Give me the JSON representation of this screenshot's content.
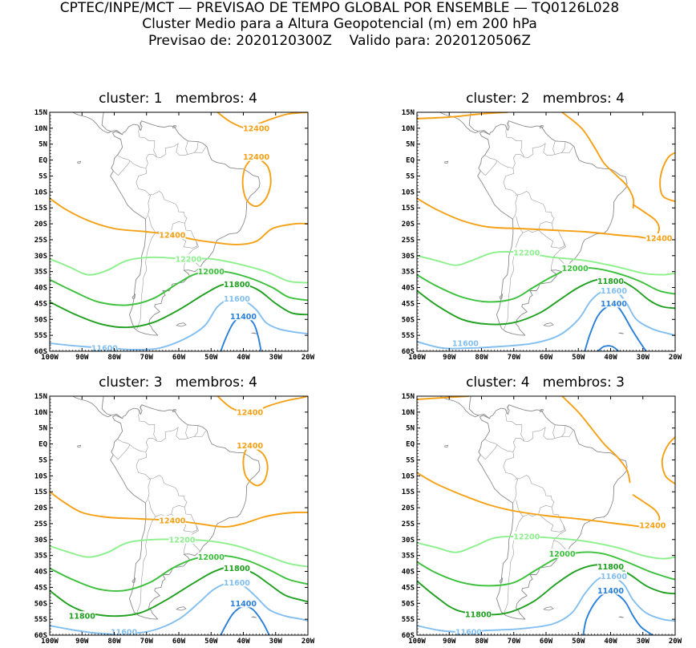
{
  "header": {
    "line1": "CPTEC/INPE/MCT — PREVISAO DE TEMPO GLOBAL POR ENSEMBLE — TQ0126L028",
    "line2": "Cluster Medio para a Altura Geopotencial (m) em 200 hPa",
    "line3": "Previsao de: 2020120300Z    Valido para: 2020120506Z"
  },
  "axes": {
    "lat_labels": [
      "15N",
      "10N",
      "5N",
      "EQ",
      "5S",
      "10S",
      "15S",
      "20S",
      "25S",
      "30S",
      "35S",
      "40S",
      "45S",
      "50S",
      "55S",
      "60S"
    ],
    "lon_labels": [
      "100W",
      "90W",
      "80W",
      "70W",
      "60W",
      "50W",
      "40W",
      "30W",
      "20W"
    ]
  },
  "colors": {
    "c12400": "#f5a015",
    "c12200": "#8cf08c",
    "c12000": "#3ac03a",
    "c11800": "#1fa01f",
    "c11600": "#82bff0",
    "c11400": "#2a80d8",
    "coast": "#8a8a8a",
    "border": "#9a9a9a"
  },
  "panels": [
    {
      "title": "cluster: 1   membros: 4",
      "labels": [
        {
          "text": "12400",
          "lon": -36,
          "lat": 10,
          "level": "c12400"
        },
        {
          "text": "12400",
          "lon": -36,
          "lat": 1,
          "level": "c12400"
        },
        {
          "text": "12400",
          "lon": -62,
          "lat": -23.5,
          "level": "c12400"
        },
        {
          "text": "12200",
          "lon": -57,
          "lat": -31,
          "level": "c12200"
        },
        {
          "text": "12000",
          "lon": -50,
          "lat": -35,
          "level": "c12000"
        },
        {
          "text": "11800",
          "lon": -42,
          "lat": -39,
          "level": "c11800"
        },
        {
          "text": "11600",
          "lon": -42,
          "lat": -43.5,
          "level": "c11600"
        },
        {
          "text": "11400",
          "lon": -40,
          "lat": -49,
          "level": "c11400"
        },
        {
          "text": "11600",
          "lon": -83,
          "lat": -59,
          "level": "c11600"
        }
      ]
    },
    {
      "title": "cluster: 2   membros: 4",
      "labels": [
        {
          "text": "12400",
          "lon": -25,
          "lat": -24.5,
          "level": "c12400"
        },
        {
          "text": "12200",
          "lon": -66,
          "lat": -29,
          "level": "c12200"
        },
        {
          "text": "12000",
          "lon": -51,
          "lat": -34,
          "level": "c12000"
        },
        {
          "text": "11800",
          "lon": -40,
          "lat": -38,
          "level": "c11800"
        },
        {
          "text": "11600",
          "lon": -39,
          "lat": -41,
          "level": "c11600"
        },
        {
          "text": "11400",
          "lon": -39,
          "lat": -45,
          "level": "c11400"
        },
        {
          "text": "11600",
          "lon": -85,
          "lat": -57.5,
          "level": "c11600"
        }
      ]
    },
    {
      "title": "cluster: 3   membros: 4",
      "labels": [
        {
          "text": "12400",
          "lon": -38,
          "lat": 10,
          "level": "c12400"
        },
        {
          "text": "12400",
          "lon": -38,
          "lat": -0.5,
          "level": "c12400"
        },
        {
          "text": "12400",
          "lon": -62,
          "lat": -24,
          "level": "c12400"
        },
        {
          "text": "12200",
          "lon": -59,
          "lat": -30,
          "level": "c12200"
        },
        {
          "text": "12000",
          "lon": -50,
          "lat": -35.5,
          "level": "c12000"
        },
        {
          "text": "11800",
          "lon": -42,
          "lat": -39,
          "level": "c11800"
        },
        {
          "text": "11600",
          "lon": -42,
          "lat": -43.5,
          "level": "c11600"
        },
        {
          "text": "11400",
          "lon": -40,
          "lat": -50,
          "level": "c11400"
        },
        {
          "text": "11800",
          "lon": -90,
          "lat": -54,
          "level": "c11800"
        },
        {
          "text": "11600",
          "lon": -77,
          "lat": -59,
          "level": "c11600"
        }
      ]
    },
    {
      "title": "cluster: 4   membros: 3",
      "labels": [
        {
          "text": "12400",
          "lon": -27,
          "lat": -25.5,
          "level": "c12400"
        },
        {
          "text": "12200",
          "lon": -66,
          "lat": -29,
          "level": "c12200"
        },
        {
          "text": "12000",
          "lon": -55,
          "lat": -34.5,
          "level": "c12000"
        },
        {
          "text": "11800",
          "lon": -40,
          "lat": -38.5,
          "level": "c11800"
        },
        {
          "text": "11600",
          "lon": -39,
          "lat": -41.5,
          "level": "c11600"
        },
        {
          "text": "11400",
          "lon": -40,
          "lat": -46,
          "level": "c11400"
        },
        {
          "text": "11800",
          "lon": -81,
          "lat": -53.5,
          "level": "c11800"
        },
        {
          "text": "11600",
          "lon": -84,
          "lat": -59,
          "level": "c11600"
        }
      ]
    }
  ]
}
